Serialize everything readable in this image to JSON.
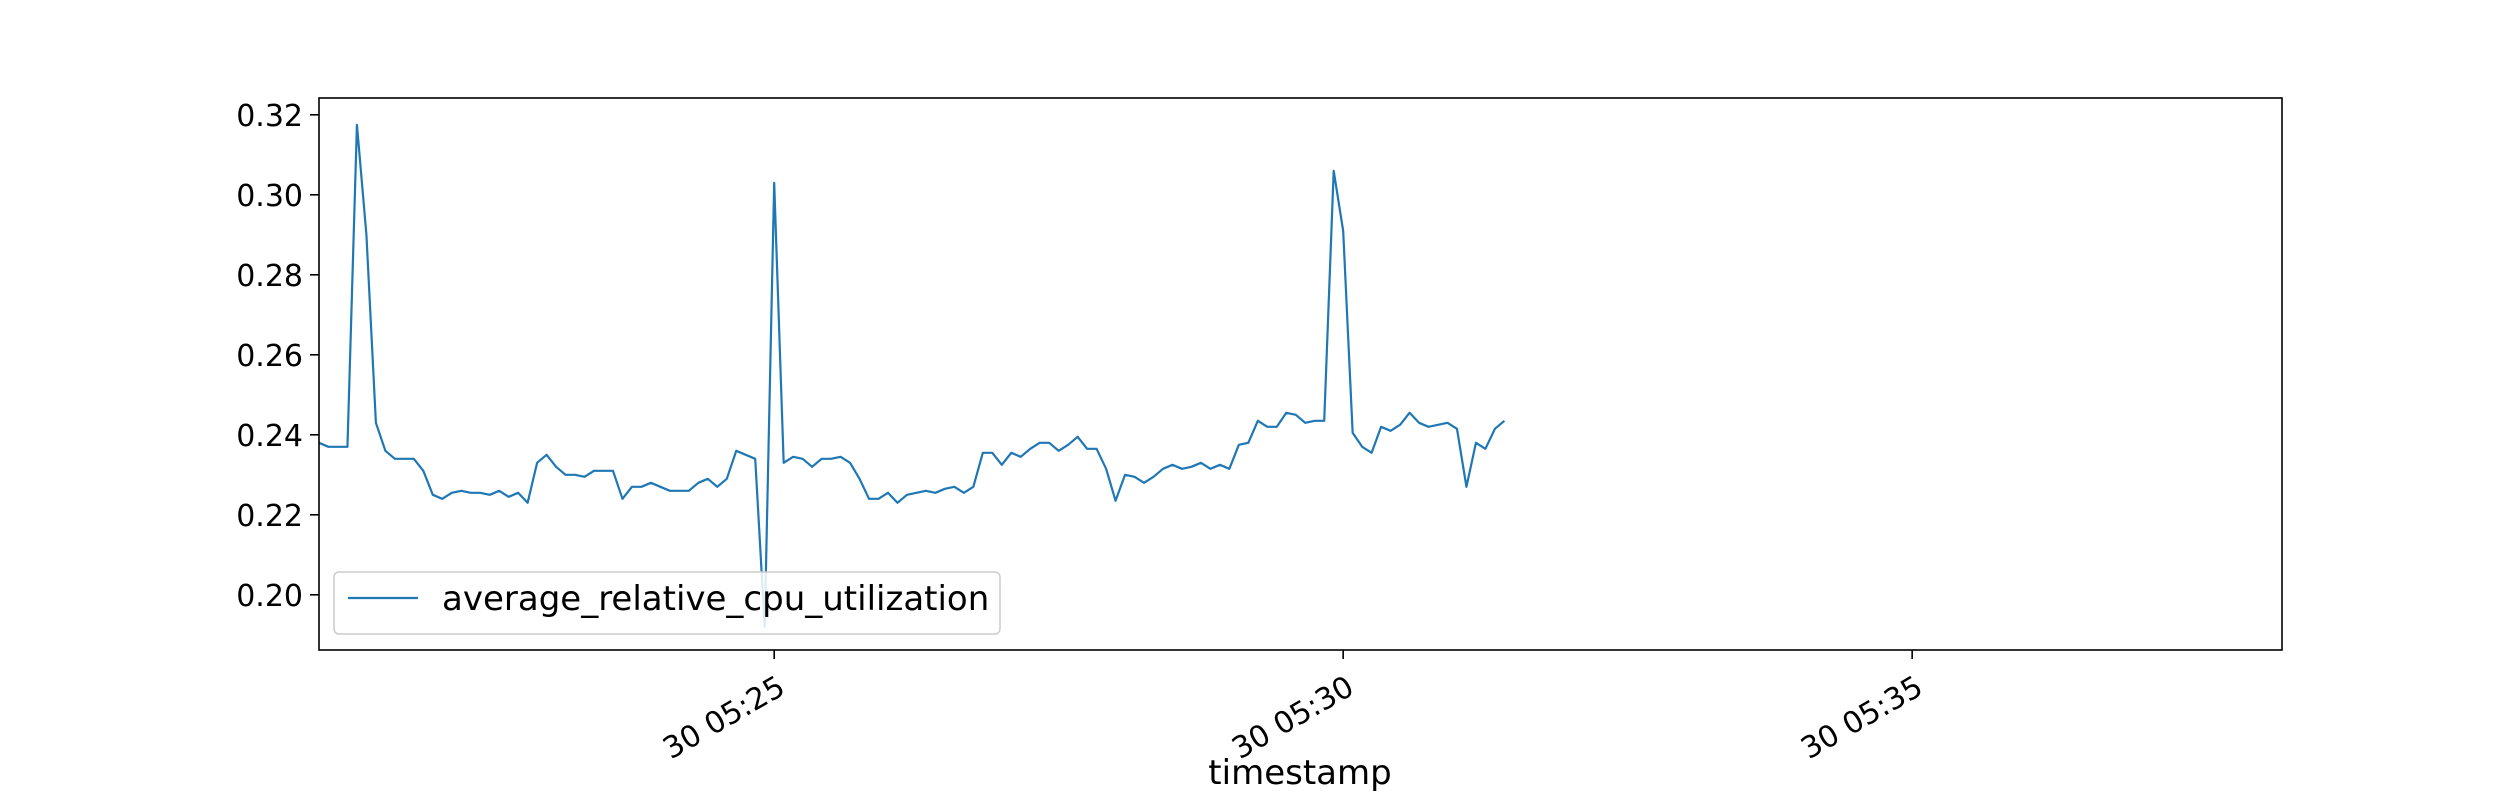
{
  "chart_data": {
    "type": "line",
    "title": "",
    "xlabel": "timestamp",
    "ylabel": "",
    "x_start": "30 05:21:00",
    "x_interval_seconds": 5,
    "xlim": [
      "30 05:21:00",
      "30 05:38:15"
    ],
    "ylim": [
      0.1862,
      0.3242
    ],
    "x_ticks": [
      "30 05:25",
      "30 05:30",
      "30 05:35"
    ],
    "y_ticks": [
      0.2,
      0.22,
      0.24,
      0.26,
      0.28,
      0.3,
      0.32
    ],
    "y_tick_labels": [
      "0.20",
      "0.22",
      "0.24",
      "0.26",
      "0.28",
      "0.30",
      "0.32"
    ],
    "grid": false,
    "legend": {
      "placement": "lower-left"
    },
    "series": [
      {
        "name": "average_relative_cpu_utilization",
        "color": "#1f77b4",
        "values": [
          0.238,
          0.237,
          0.237,
          0.237,
          0.3175,
          0.29,
          0.243,
          0.236,
          0.234,
          0.234,
          0.234,
          0.231,
          0.225,
          0.224,
          0.2255,
          0.226,
          0.2255,
          0.2255,
          0.225,
          0.226,
          0.2245,
          0.2255,
          0.223,
          0.233,
          0.235,
          0.232,
          0.23,
          0.23,
          0.2295,
          0.231,
          0.231,
          0.231,
          0.224,
          0.227,
          0.227,
          0.228,
          0.227,
          0.226,
          0.226,
          0.226,
          0.228,
          0.229,
          0.227,
          0.229,
          0.236,
          0.235,
          0.234,
          0.192,
          0.303,
          0.233,
          0.2345,
          0.234,
          0.232,
          0.234,
          0.234,
          0.2345,
          0.233,
          0.229,
          0.224,
          0.224,
          0.2255,
          0.223,
          0.225,
          0.2255,
          0.226,
          0.2255,
          0.2265,
          0.227,
          0.2255,
          0.227,
          0.2355,
          0.2355,
          0.2325,
          0.2355,
          0.2345,
          0.2365,
          0.238,
          0.238,
          0.236,
          0.2375,
          0.2395,
          0.2365,
          0.2365,
          0.2315,
          0.2235,
          0.23,
          0.2295,
          0.228,
          0.2295,
          0.2315,
          0.2325,
          0.2315,
          0.232,
          0.233,
          0.2315,
          0.2325,
          0.2315,
          0.2375,
          0.238,
          0.2435,
          0.242,
          0.242,
          0.2455,
          0.245,
          0.243,
          0.2435,
          0.2435,
          0.306,
          0.291,
          0.2405,
          0.237,
          0.2355,
          0.242,
          0.241,
          0.2425,
          0.2455,
          0.243,
          0.242,
          0.2425,
          0.243,
          0.2415,
          0.227,
          0.238,
          0.2365,
          0.2415,
          0.2435
        ]
      }
    ]
  }
}
